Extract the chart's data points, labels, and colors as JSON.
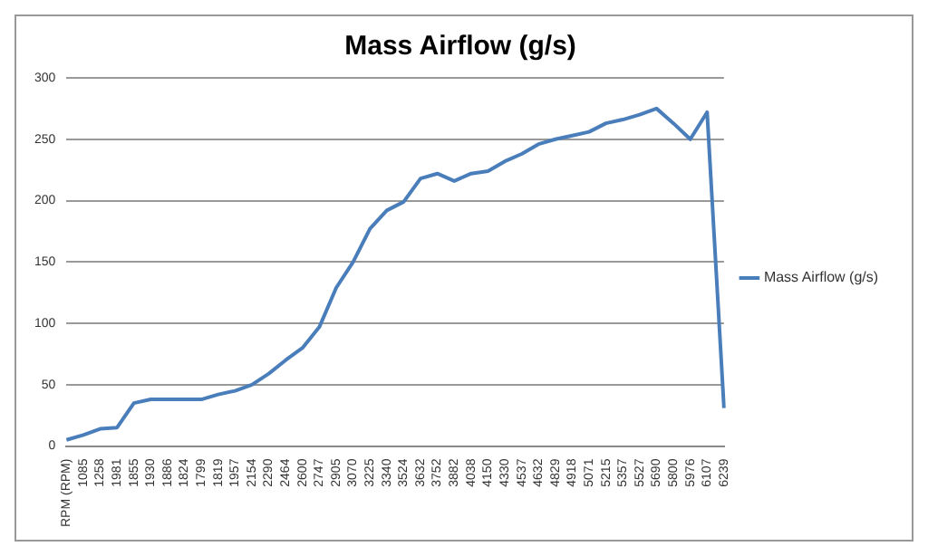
{
  "chart_data": {
    "type": "line",
    "title": "Mass Airflow (g/s)",
    "categories": [
      "RPM (RPM)",
      "1085",
      "1258",
      "1981",
      "1855",
      "1930",
      "1886",
      "1824",
      "1799",
      "1819",
      "1957",
      "2154",
      "2290",
      "2464",
      "2600",
      "2747",
      "2905",
      "3070",
      "3225",
      "3340",
      "3524",
      "3632",
      "3752",
      "3882",
      "4038",
      "4150",
      "4330",
      "4537",
      "4632",
      "4829",
      "4918",
      "5071",
      "5215",
      "5357",
      "5527",
      "5690",
      "5800",
      "5976",
      "6107",
      "6239"
    ],
    "series": [
      {
        "name": "Mass Airflow (g/s)",
        "color": "#4a7ebb",
        "values": [
          5,
          9,
          14,
          15,
          35,
          38,
          38,
          38,
          38,
          42,
          45,
          50,
          59,
          70,
          80,
          97,
          129,
          150,
          177,
          192,
          199,
          218,
          222,
          216,
          222,
          224,
          232,
          238,
          246,
          250,
          253,
          256,
          263,
          266,
          270,
          275,
          263,
          250,
          272,
          31
        ]
      }
    ],
    "ylim": [
      0,
      300
    ],
    "yticks": [
      0,
      50,
      100,
      150,
      200,
      250,
      300
    ],
    "grid": "y",
    "legend": "right",
    "marker": "none",
    "line_style": "solid"
  }
}
